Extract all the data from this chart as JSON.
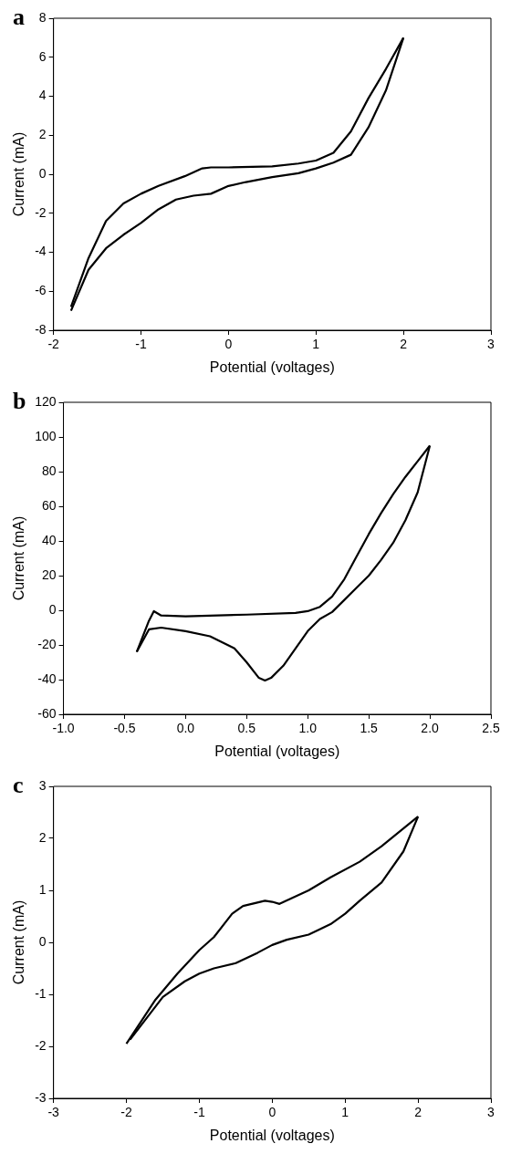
{
  "chart_data": [
    {
      "type": "line",
      "title": "a",
      "xlabel": "Potential (voltages)",
      "ylabel": "Current (mA)",
      "xlim": [
        -2,
        3
      ],
      "xticks": [
        -2,
        -1,
        0,
        1,
        2,
        3
      ],
      "ylim": [
        -8,
        8
      ],
      "yticks": [
        -8,
        -6,
        -4,
        -2,
        0,
        2,
        4,
        6,
        8
      ],
      "grid": false,
      "legend": false,
      "marker": "none",
      "line_style": "solid",
      "series": [
        {
          "color": "#000000",
          "x": [
            -1.8,
            -1.6,
            -1.4,
            -1.2,
            -1.0,
            -0.8,
            -0.5,
            -0.3,
            -0.2,
            0,
            0.5,
            0.8,
            1.0,
            1.2,
            1.4,
            1.6,
            1.8,
            2.0
          ],
          "values": [
            -6.8,
            -4.3,
            -2.4,
            -1.5,
            -1.0,
            -0.6,
            -0.1,
            0.3,
            0.35,
            0.35,
            0.4,
            0.55,
            0.7,
            1.1,
            2.2,
            3.9,
            5.4,
            7.0
          ]
        },
        {
          "color": "#000000",
          "x": [
            2.0,
            1.8,
            1.6,
            1.4,
            1.2,
            1.0,
            0.8,
            0.5,
            0.2,
            0,
            -0.2,
            -0.4,
            -0.6,
            -0.8,
            -1.0,
            -1.2,
            -1.4,
            -1.6,
            -1.8
          ],
          "values": [
            7.0,
            4.3,
            2.4,
            1.0,
            0.6,
            0.3,
            0.05,
            -0.15,
            -0.4,
            -0.6,
            -1.0,
            -1.1,
            -1.3,
            -1.8,
            -2.5,
            -3.1,
            -3.8,
            -4.9,
            -7.0
          ]
        }
      ]
    },
    {
      "type": "line",
      "title": "b",
      "xlabel": "Potential (voltages)",
      "ylabel": "Current (mA)",
      "xlim": [
        -1,
        2.5
      ],
      "xticks": [
        {
          "value": -1,
          "label": "-1.0"
        },
        {
          "value": -0.5,
          "label": "-0.5"
        },
        {
          "value": 0,
          "label": "0.0"
        },
        {
          "value": 0.5,
          "label": "0.5"
        },
        {
          "value": 1,
          "label": "1.0"
        },
        {
          "value": 1.5,
          "label": "1.5"
        },
        {
          "value": 2,
          "label": "2.0"
        },
        {
          "value": 2.5,
          "label": "2.5"
        }
      ],
      "ylim": [
        -60,
        120
      ],
      "yticks": [
        -60,
        -40,
        -20,
        0,
        20,
        40,
        60,
        80,
        100,
        120
      ],
      "grid": false,
      "legend": false,
      "marker": "none",
      "line_style": "solid",
      "series": [
        {
          "color": "#000000",
          "x": [
            -0.4,
            -0.3,
            -0.26,
            -0.2,
            0,
            0.5,
            0.9,
            1.0,
            1.1,
            1.2,
            1.3,
            1.4,
            1.5,
            1.6,
            1.7,
            1.8,
            1.9,
            2.0
          ],
          "values": [
            -24,
            -6,
            -0.5,
            -3,
            -3.5,
            -2.5,
            -1.5,
            -0.5,
            2,
            8,
            18,
            31,
            44,
            56,
            67,
            77,
            86,
            95
          ]
        },
        {
          "color": "#000000",
          "x": [
            2.0,
            1.9,
            1.8,
            1.7,
            1.6,
            1.5,
            1.4,
            1.3,
            1.2,
            1.1,
            1.0,
            0.9,
            0.8,
            0.7,
            0.65,
            0.6,
            0.5,
            0.4,
            0.2,
            0,
            -0.2,
            -0.3,
            -0.4
          ],
          "values": [
            95,
            68,
            52,
            39,
            29,
            20,
            13,
            6,
            -1,
            -5,
            -12,
            -22,
            -32,
            -39,
            -40.5,
            -39,
            -30,
            -22,
            -15,
            -12,
            -10,
            -11,
            -24
          ]
        }
      ]
    },
    {
      "type": "line",
      "title": "c",
      "xlabel": "Potential (voltages)",
      "ylabel": "Current (mA)",
      "xlim": [
        -3,
        3
      ],
      "xticks": [
        -3,
        -2,
        -1,
        0,
        1,
        2,
        3
      ],
      "ylim": [
        -3,
        3
      ],
      "yticks": [
        -3,
        -2,
        -1,
        0,
        1,
        2,
        3
      ],
      "grid": false,
      "legend": false,
      "marker": "none",
      "line_style": "solid",
      "series": [
        {
          "color": "#000000",
          "x": [
            -2.0,
            -1.6,
            -1.3,
            -1.0,
            -0.8,
            -0.55,
            -0.4,
            -0.1,
            0,
            0.1,
            0.5,
            0.8,
            1.2,
            1.5,
            2.0
          ],
          "values": [
            -1.95,
            -1.1,
            -0.6,
            -0.15,
            0.1,
            0.55,
            0.7,
            0.8,
            0.78,
            0.74,
            1.0,
            1.25,
            1.55,
            1.85,
            2.42
          ]
        },
        {
          "color": "#000000",
          "x": [
            2.0,
            1.8,
            1.5,
            1.2,
            1.0,
            0.8,
            0.5,
            0.2,
            0,
            -0.2,
            -0.5,
            -0.8,
            -1.0,
            -1.2,
            -1.5,
            -1.95
          ],
          "values": [
            2.42,
            1.75,
            1.15,
            0.8,
            0.55,
            0.35,
            0.15,
            0.05,
            -0.05,
            -0.2,
            -0.4,
            -0.5,
            -0.6,
            -0.75,
            -1.05,
            -1.87
          ]
        }
      ]
    }
  ]
}
